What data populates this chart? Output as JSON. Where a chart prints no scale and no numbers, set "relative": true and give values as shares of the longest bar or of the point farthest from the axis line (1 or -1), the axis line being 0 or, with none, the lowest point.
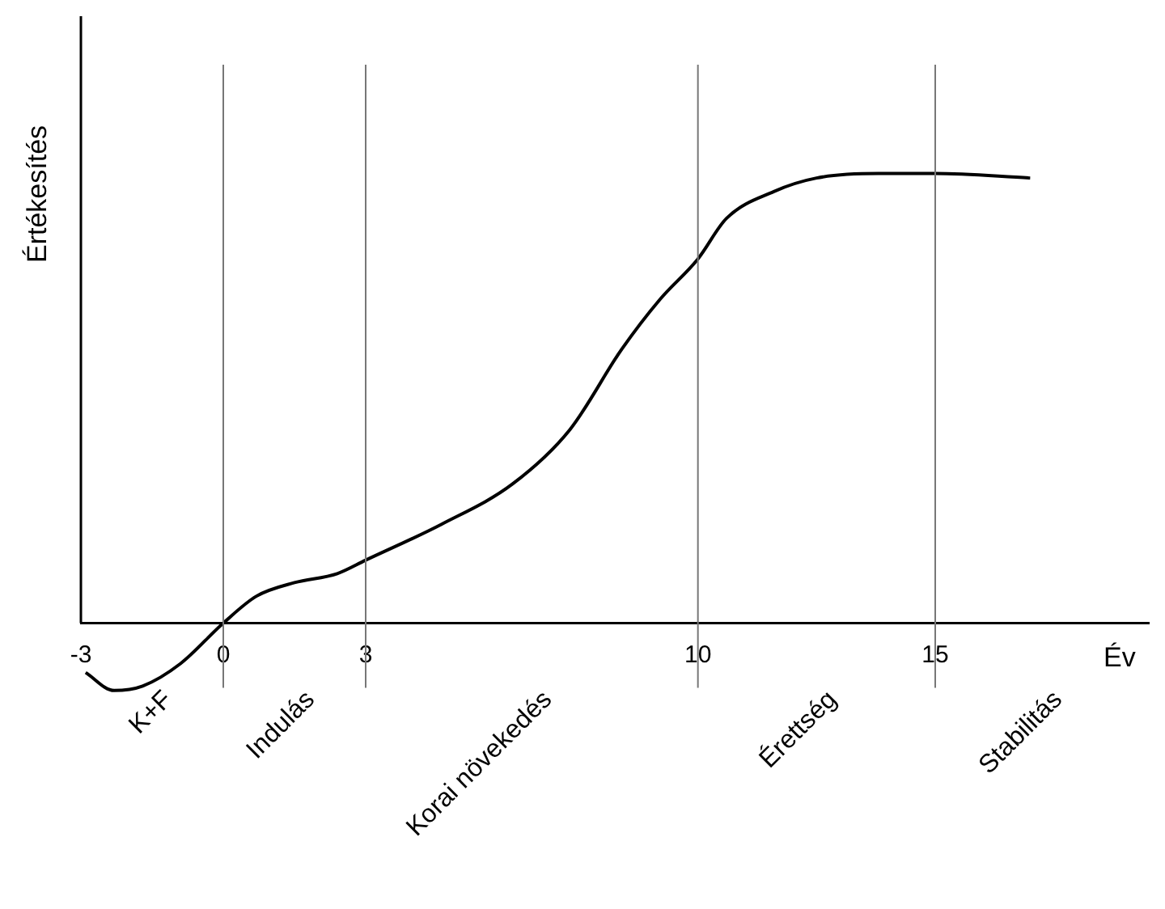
{
  "chart_data": {
    "type": "line",
    "relative": true,
    "xlabel": "Év",
    "ylabel": "Értékesítés",
    "x": [
      -2.9,
      -2.3,
      -1.7,
      -0.9,
      0,
      0.7,
      1.5,
      2.4,
      3,
      4.6,
      6.1,
      7.3,
      8.4,
      9.2,
      10,
      10.6,
      11.6,
      12.5,
      13.8,
      15,
      17
    ],
    "series": [
      {
        "color": "#000000",
        "values": [
          -0.11,
          -0.15,
          -0.14,
          -0.09,
          0,
          0.06,
          0.09,
          0.11,
          0.14,
          0.22,
          0.31,
          0.43,
          0.61,
          0.72,
          0.81,
          0.9,
          0.96,
          0.99,
          1,
          1,
          0.99
        ]
      }
    ],
    "xlim": [
      -3,
      19.5
    ],
    "xticks": [
      -3,
      0,
      3,
      10,
      15
    ],
    "grid": false,
    "legend": false,
    "marker": "none",
    "line_style": "solid",
    "ref_lines": [
      {
        "axis": "x",
        "value": 0
      },
      {
        "axis": "x",
        "value": 3
      },
      {
        "axis": "x",
        "value": 10
      },
      {
        "axis": "x",
        "value": 15
      }
    ],
    "annotations": [
      "K+F",
      "Indulás",
      "Korai növekedés",
      "Érettség",
      "Stabilitás"
    ]
  }
}
